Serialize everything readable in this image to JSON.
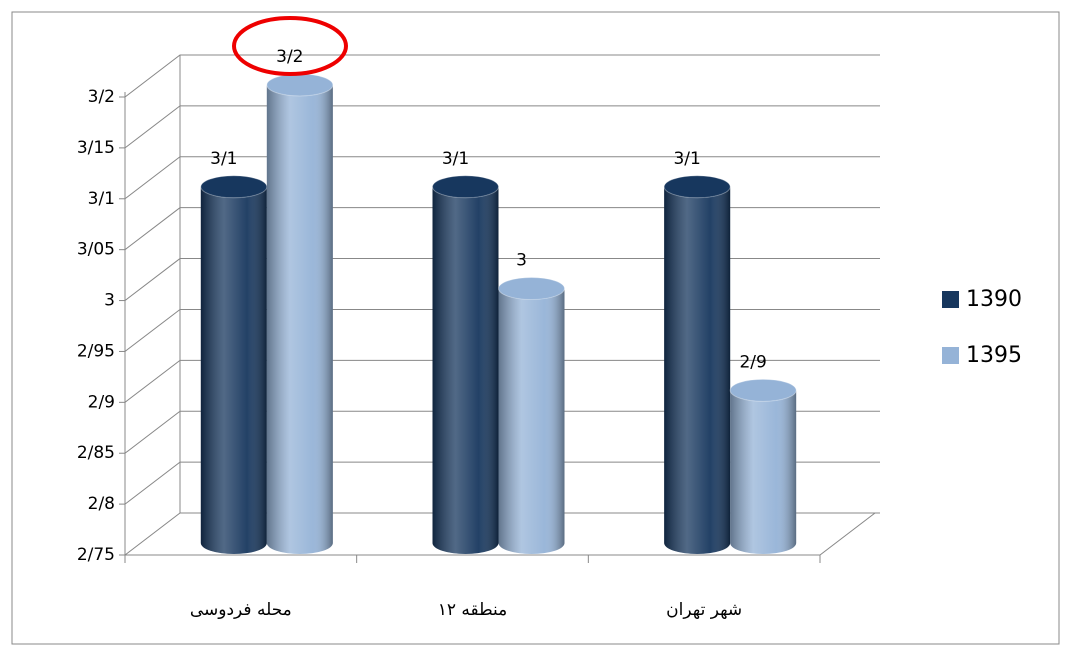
{
  "chart_data": {
    "type": "bar3d",
    "categories": [
      "محله فردوسی",
      "منطقه ۱۲",
      "شهر تهران"
    ],
    "series": [
      {
        "name": "1390",
        "color": "#17375e",
        "values": [
          3.1,
          3.1,
          3.1
        ],
        "value_labels": [
          "3/1",
          "3/1",
          "3/1"
        ]
      },
      {
        "name": "1395",
        "color": "#95b3d7",
        "values": [
          3.2,
          3.0,
          2.9
        ],
        "value_labels": [
          "3/2",
          "3",
          "2/9"
        ]
      }
    ],
    "ylim": [
      2.75,
      3.2
    ],
    "yticks": [
      {
        "value": 2.75,
        "label": "2/75"
      },
      {
        "value": 2.8,
        "label": "2/8"
      },
      {
        "value": 2.85,
        "label": "2/85"
      },
      {
        "value": 2.9,
        "label": "2/9"
      },
      {
        "value": 2.95,
        "label": "2/95"
      },
      3,
      {
        "value": 3.05,
        "label": "3/05"
      },
      {
        "value": 3.1,
        "label": "3/1"
      },
      {
        "value": 3.15,
        "label": "3/15"
      },
      {
        "value": 3.2,
        "label": "3/2"
      }
    ],
    "grid": true,
    "legend": "right"
  }
}
